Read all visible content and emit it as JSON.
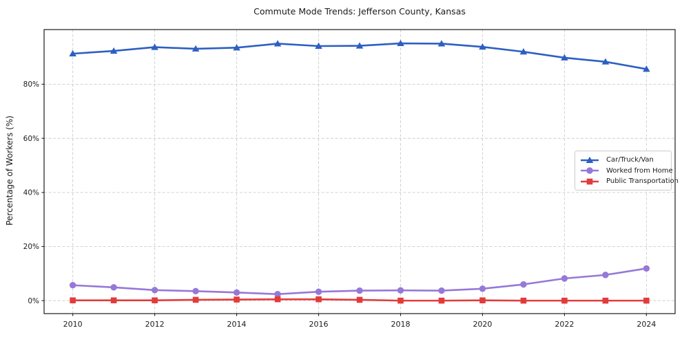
{
  "chart_data": {
    "type": "line",
    "title": "Commute Mode Trends: Jefferson County, Kansas",
    "xlabel": "",
    "ylabel": "Percentage of Workers (%)",
    "x": [
      2010,
      2011,
      2012,
      2013,
      2014,
      2015,
      2016,
      2017,
      2018,
      2019,
      2020,
      2021,
      2022,
      2023,
      2024
    ],
    "series": [
      {
        "name": "Car/Truck/Van",
        "color": "#2d5fc2",
        "marker": "triangle",
        "values": [
          91.3,
          92.3,
          93.7,
          93.1,
          93.5,
          95.0,
          94.1,
          94.2,
          95.1,
          95.0,
          93.8,
          92.0,
          89.8,
          88.3,
          85.6
        ]
      },
      {
        "name": "Worked from Home",
        "color": "#9678d8",
        "marker": "circle",
        "values": [
          5.7,
          4.9,
          3.9,
          3.5,
          3.0,
          2.4,
          3.3,
          3.7,
          3.8,
          3.7,
          4.4,
          6.0,
          8.2,
          9.5,
          11.9
        ]
      },
      {
        "name": "Public Transportation",
        "color": "#e23b3b",
        "marker": "square",
        "values": [
          0.1,
          0.1,
          0.1,
          0.3,
          0.4,
          0.5,
          0.5,
          0.3,
          0.0,
          0.0,
          0.1,
          0.0,
          0.0,
          0.0,
          0.0
        ]
      }
    ],
    "x_ticks": {
      "values": [
        2010,
        2012,
        2014,
        2016,
        2018,
        2020,
        2022,
        2024
      ],
      "labels": [
        "2010",
        "2012",
        "2014",
        "2016",
        "2018",
        "2020",
        "2022",
        "2024"
      ]
    },
    "y_ticks": {
      "values": [
        0,
        20,
        40,
        60,
        80
      ],
      "labels": [
        "0%",
        "20%",
        "40%",
        "60%",
        "80%"
      ]
    },
    "xlim": [
      2009.3,
      2024.7
    ],
    "ylim": [
      -4.8,
      100.2
    ],
    "grid": {
      "show": true,
      "style": "dashed",
      "color": "#cccccc"
    },
    "legend": {
      "position": "center-right",
      "border_color": "#cccccc",
      "background": "#ffffff"
    },
    "axis_color": "#1a1a1a",
    "tick_label_color": "#1a1a1a"
  }
}
